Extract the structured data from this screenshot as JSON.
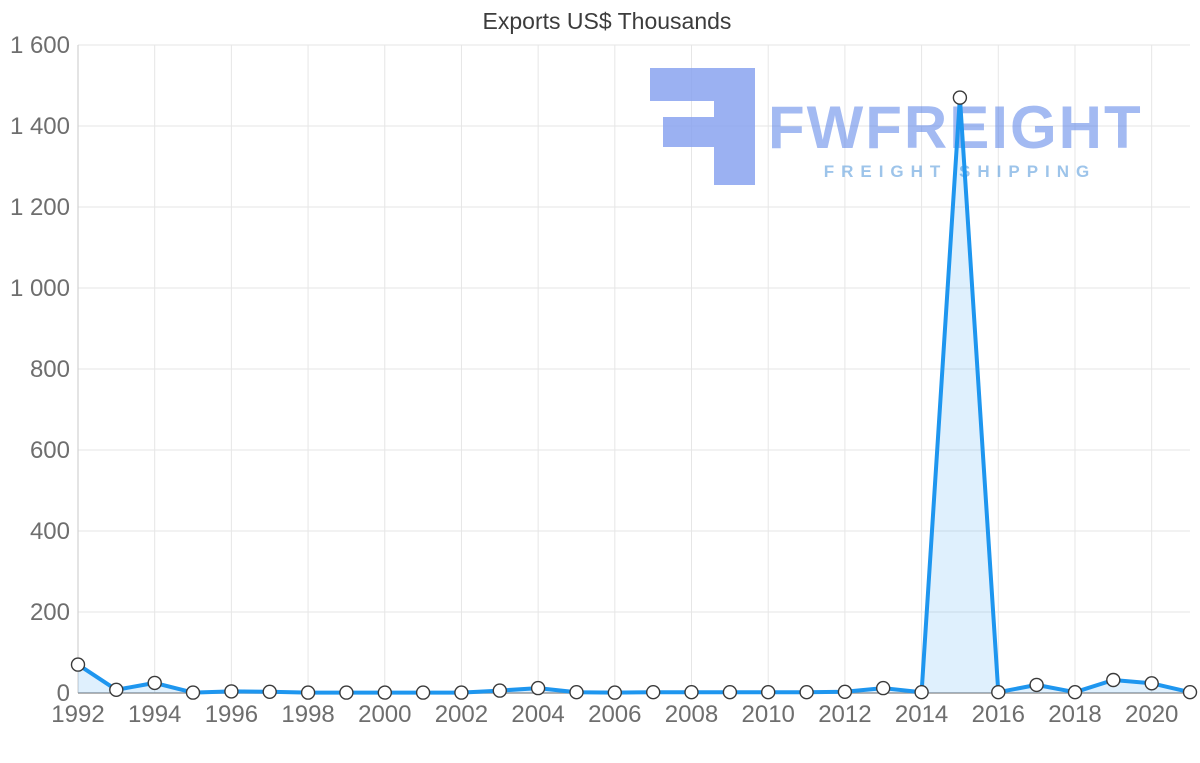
{
  "watermark": {
    "brand": "FWFREIGHT",
    "subtitle": "FREIGHT SHIPPING"
  },
  "chart_data": {
    "type": "area",
    "title": "Exports US$ Thousands",
    "x": [
      1992,
      1993,
      1994,
      1995,
      1996,
      1997,
      1998,
      1999,
      2000,
      2001,
      2002,
      2003,
      2004,
      2005,
      2006,
      2007,
      2008,
      2009,
      2010,
      2011,
      2012,
      2013,
      2014,
      2015,
      2016,
      2017,
      2018,
      2019,
      2020,
      2021
    ],
    "values": [
      70,
      8,
      25,
      1,
      4,
      3,
      1,
      1,
      1,
      1,
      1,
      6,
      12,
      2,
      1,
      2,
      2,
      2,
      2,
      2,
      3,
      12,
      2,
      1470,
      2,
      20,
      2,
      32,
      24,
      2
    ],
    "x_ticks": [
      1992,
      1994,
      1996,
      1998,
      2000,
      2002,
      2004,
      2006,
      2008,
      2010,
      2012,
      2014,
      2016,
      2018,
      2020
    ],
    "x_tick_labels": [
      "1992",
      "1994",
      "1996",
      "1998",
      "2000",
      "2002",
      "2004",
      "2006",
      "2008",
      "2010",
      "2012",
      "2014",
      "2016",
      "2018",
      "2020"
    ],
    "y_ticks": [
      0,
      200,
      400,
      600,
      800,
      1000,
      1200,
      1400,
      1600
    ],
    "y_tick_labels": [
      "0",
      "200",
      "400",
      "600",
      "800",
      "1 000",
      "1 200",
      "1 400",
      "1 600"
    ],
    "xlim": [
      1992,
      2021
    ],
    "ylim": [
      0,
      1600
    ],
    "grid": true,
    "legend": "none",
    "colors": {
      "line": "#1e96ef",
      "area": "rgba(30,150,239,0.14)",
      "marker_fill": "#ffffff",
      "marker_stroke": "#3a3a3a"
    }
  }
}
